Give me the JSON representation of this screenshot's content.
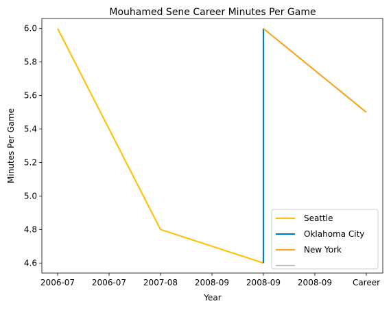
{
  "chart_data": {
    "type": "line",
    "title": "Mouhamed Sene Career Minutes Per Game",
    "xlabel": "Year",
    "ylabel": "Minutes Per Game",
    "categories": [
      "2006-07",
      "2006-07",
      "2007-08",
      "2008-09",
      "2008-09",
      "2008-09",
      "Career"
    ],
    "ylim": [
      4.54,
      6.06
    ],
    "yticks": [
      4.6,
      4.8,
      5.0,
      5.2,
      5.4,
      5.6,
      5.8,
      6.0
    ],
    "ytick_labels": [
      "4.6",
      "4.8",
      "5.0",
      "5.2",
      "5.4",
      "5.6",
      "5.8",
      "6.0"
    ],
    "grid": false,
    "legend_position": "lower-right",
    "series": [
      {
        "name": "Seattle",
        "color": "#FFC20E",
        "x": [
          0,
          2,
          4
        ],
        "values": [
          6.0,
          4.8,
          4.6
        ]
      },
      {
        "name": "Oklahoma City",
        "color": "#007AC1",
        "x": [
          4,
          4
        ],
        "values": [
          4.6,
          6.0
        ]
      },
      {
        "name": "New York",
        "color": "#F5A623",
        "x": [
          4,
          6
        ],
        "values": [
          6.0,
          5.5
        ]
      },
      {
        "name": "",
        "color": "#C0C0C0",
        "x": [],
        "values": []
      }
    ]
  }
}
